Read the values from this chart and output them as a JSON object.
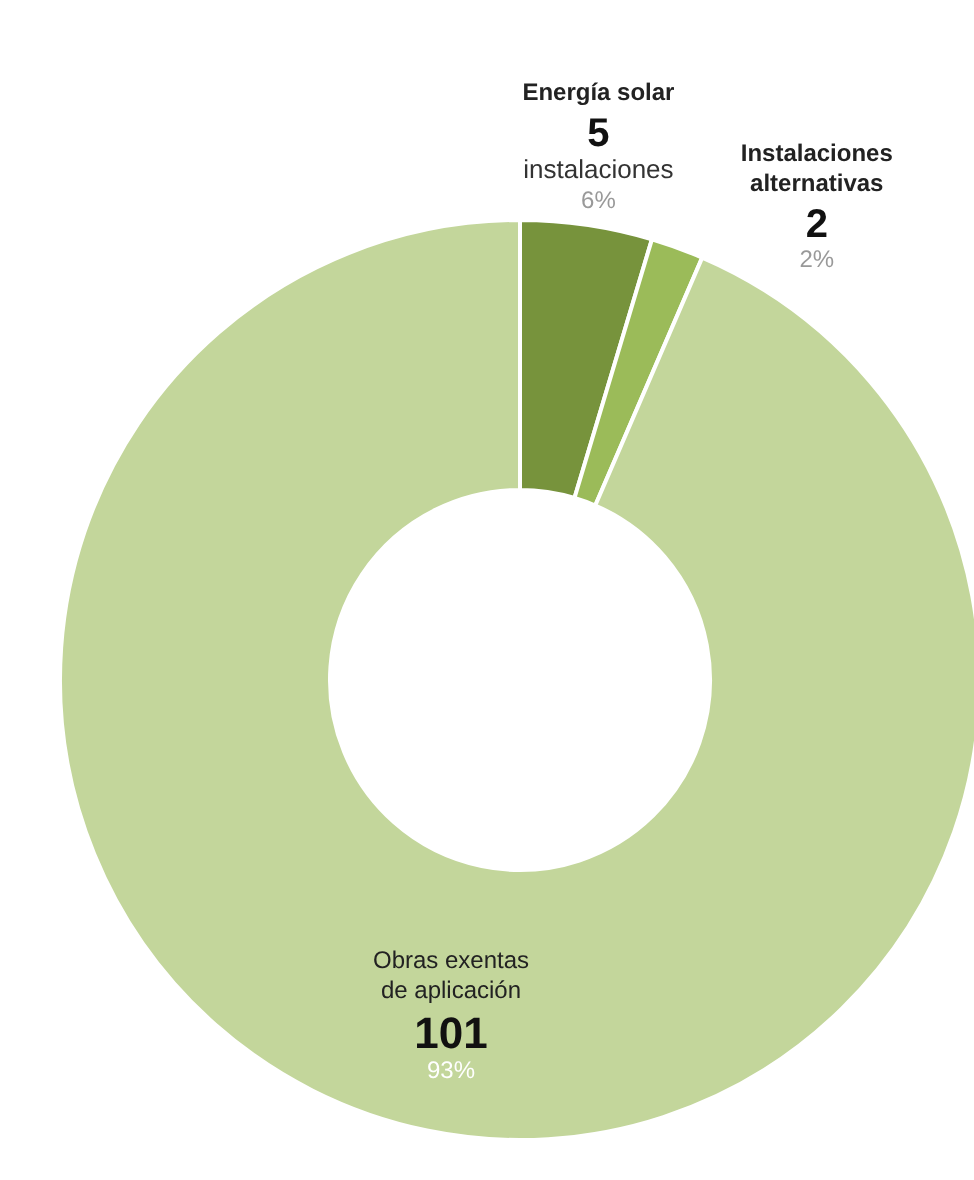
{
  "chart_data": {
    "type": "donut",
    "categories": [
      "Energía solar",
      "Instalaciones alternativas",
      "Obras exentas de aplicación"
    ],
    "values": [
      5,
      2,
      101
    ],
    "colors": [
      "#77933c",
      "#9bbb59",
      "#c3d69b"
    ],
    "value_labels": [
      "5",
      "2",
      "101"
    ],
    "annotations": [
      {
        "text": "instalaciones",
        "x": "Energía solar"
      },
      {
        "text": "6%",
        "x": "Energía solar"
      },
      {
        "text": "2%",
        "x": "Instalaciones alternativas"
      },
      {
        "text": "93%",
        "x": "Obras exentas de aplicación"
      }
    ],
    "legend": false
  }
}
